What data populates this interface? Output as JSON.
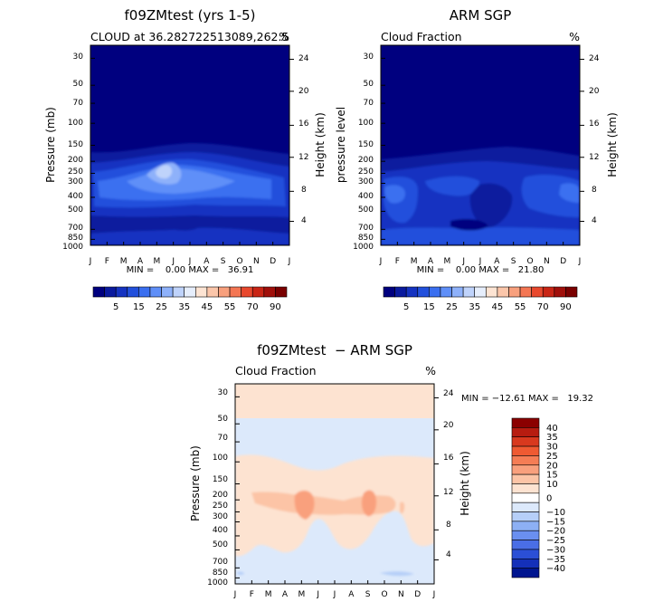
{
  "chart_data": [
    {
      "type": "heatmap",
      "title": "f09ZMtest (yrs 1-5)",
      "subtitle": "CLOUD at 36.282722513089,262.5",
      "units": "%",
      "ylabel": "Pressure (mb)",
      "ylabel_right": "Height (km)",
      "months": [
        "J",
        "F",
        "M",
        "A",
        "M",
        "J",
        "J",
        "A",
        "S",
        "O",
        "N",
        "D",
        "J"
      ],
      "pressure_ticks": [
        "30",
        "50",
        "70",
        "100",
        "150",
        "200",
        "250",
        "300",
        "400",
        "500",
        "700",
        "850",
        "1000"
      ],
      "height_ticks": [
        "24",
        "20",
        "16",
        "12",
        "8",
        "4"
      ],
      "min_max_text": "MIN =    0.00 MAX =   36.91",
      "min": 0.0,
      "max": 36.91,
      "colorbar_labels": [
        "5",
        "15",
        "25",
        "35",
        "45",
        "55",
        "70",
        "90"
      ],
      "colorbar_colors": [
        "#00007f",
        "#0a1a9e",
        "#1533c1",
        "#2250dc",
        "#3a6ff0",
        "#5f8ff8",
        "#8eb1fa",
        "#bfd3fb",
        "#e6eefc",
        "#fde4d3",
        "#fbc6aa",
        "#f8a07d",
        "#f47653",
        "#e8482d",
        "#c92515",
        "#a00f0a",
        "#7a0000"
      ]
    },
    {
      "type": "heatmap",
      "title": "ARM SGP",
      "subtitle": "Cloud Fraction",
      "units": "%",
      "ylabel": "pressure level",
      "ylabel_right": "Height (km)",
      "months": [
        "J",
        "F",
        "M",
        "A",
        "M",
        "J",
        "J",
        "A",
        "S",
        "O",
        "N",
        "D",
        "J"
      ],
      "pressure_ticks": [
        "30",
        "50",
        "70",
        "100",
        "150",
        "200",
        "250",
        "300",
        "400",
        "500",
        "700",
        "850",
        "1000"
      ],
      "height_ticks": [
        "24",
        "20",
        "16",
        "12",
        "8",
        "4"
      ],
      "min_max_text": "MIN =    0.00 MAX =   21.80",
      "min": 0.0,
      "max": 21.8,
      "colorbar_labels": [
        "5",
        "15",
        "25",
        "35",
        "45",
        "55",
        "70",
        "90"
      ],
      "colorbar_colors": [
        "#00007f",
        "#0a1a9e",
        "#1533c1",
        "#2250dc",
        "#3a6ff0",
        "#5f8ff8",
        "#8eb1fa",
        "#bfd3fb",
        "#e6eefc",
        "#fde4d3",
        "#fbc6aa",
        "#f8a07d",
        "#f47653",
        "#e8482d",
        "#c92515",
        "#a00f0a",
        "#7a0000"
      ]
    },
    {
      "type": "heatmap",
      "title": "f09ZMtest  − ARM SGP",
      "subtitle": "Cloud Fraction",
      "units": "%",
      "ylabel": "Pressure (mb)",
      "ylabel_right": "Height (km)",
      "months": [
        "J",
        "F",
        "M",
        "A",
        "M",
        "J",
        "J",
        "A",
        "S",
        "O",
        "N",
        "D",
        "J"
      ],
      "pressure_ticks": [
        "30",
        "50",
        "70",
        "100",
        "150",
        "200",
        "250",
        "300",
        "400",
        "500",
        "700",
        "850",
        "1000"
      ],
      "height_ticks": [
        "24",
        "20",
        "16",
        "12",
        "8",
        "4"
      ],
      "min_max_text": "MIN = −12.61 MAX =   19.32",
      "min": -12.61,
      "max": 19.32,
      "colorbar_labels": [
        "40",
        "35",
        "30",
        "25",
        "20",
        "15",
        "10",
        "0",
        "−10",
        "−15",
        "−20",
        "−25",
        "−30",
        "−35",
        "−40"
      ],
      "colorbar_colors": [
        "#8b0000",
        "#b71c10",
        "#d8391e",
        "#ef5a32",
        "#f57d55",
        "#f9a07d",
        "#fcc4a6",
        "#fde3d1",
        "#ffffff",
        "#dce9fb",
        "#b6cff8",
        "#8db0f4",
        "#6a8ff0",
        "#4a6ee6",
        "#2b4fd6",
        "#1430b9",
        "#00158f"
      ]
    }
  ]
}
